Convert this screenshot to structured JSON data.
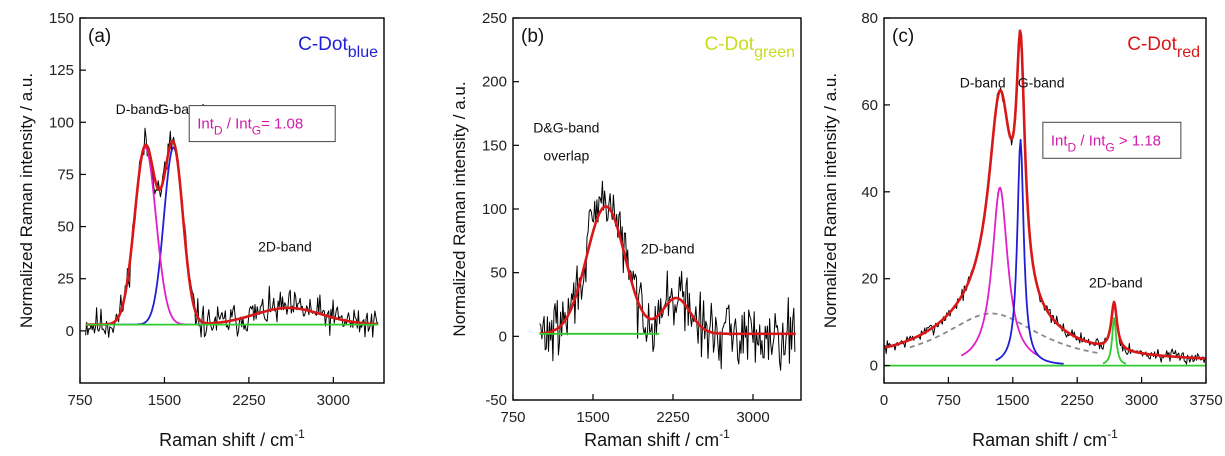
{
  "chart_data": [
    {
      "type": "line",
      "panel_label": "(a)",
      "title_main": "C-Dot",
      "title_sub": "blue",
      "title_color": "#1f1fd6",
      "xlabel_main": "Raman shift / cm",
      "xlabel_sup": "-1",
      "ylabel": "Normalized Raman intensity / a.u.",
      "xlim": [
        750,
        3450
      ],
      "ylim": [
        -25,
        150
      ],
      "xticks": [
        750,
        1500,
        2250,
        3000
      ],
      "yticks": [
        0,
        25,
        50,
        75,
        100,
        125,
        150
      ],
      "ratio_box": {
        "a": "Int",
        "a_sub": "D",
        "sep": " / ",
        "b": "Int",
        "b_sub": "G",
        "tail": "= 1.08",
        "color": "#d21aa8",
        "box_x": 1720,
        "box_y": 108
      },
      "annotations": [
        {
          "text": "D-band",
          "x": 1270,
          "y": 104
        },
        {
          "text": "G-band",
          "x": 1650,
          "y": 104
        },
        {
          "text": "2D-band",
          "x": 2570,
          "y": 38
        }
      ],
      "series": [
        {
          "kind": "noisy",
          "color": "#000000",
          "components": [
            [
              1330,
              85,
              95
            ],
            [
              1580,
              85,
              85
            ],
            [
              2600,
              8,
              300
            ]
          ],
          "baseline": 3,
          "noise": 9,
          "x": [
            800,
            3400
          ],
          "seed": 11
        },
        {
          "kind": "gauss",
          "color": "#1f1fd6",
          "components": [
            [
              1580,
              85,
              85
            ]
          ],
          "baseline": 3,
          "x": [
            1050,
            2000
          ]
        },
        {
          "kind": "gauss",
          "color": "#e020c8",
          "components": [
            [
              1330,
              85,
              95
            ]
          ],
          "baseline": 3,
          "x": [
            1000,
            1900
          ]
        },
        {
          "kind": "gauss",
          "color": "#d81818",
          "components": [
            [
              1330,
              85,
              95
            ],
            [
              1580,
              85,
              85
            ],
            [
              2600,
              8,
              300
            ]
          ],
          "baseline": 3,
          "x": [
            800,
            3400
          ]
        },
        {
          "kind": "flat",
          "color": "#2ecc2e",
          "value": 3,
          "x": [
            800,
            3400
          ]
        }
      ]
    },
    {
      "type": "line",
      "panel_label": "(b)",
      "title_main": "C-Dot",
      "title_sub": "green",
      "title_color": "#c8dc1e",
      "xlabel_main": "Raman shift / cm",
      "xlabel_sup": "-1",
      "ylabel": "Normalized Raman intensity / a.u.",
      "xlim": [
        750,
        3450
      ],
      "ylim": [
        -50,
        250
      ],
      "xticks": [
        750,
        1500,
        2250,
        3000
      ],
      "yticks": [
        -50,
        0,
        50,
        100,
        150,
        200,
        250
      ],
      "annotations": [
        {
          "text": "D&G-band",
          "x": 1250,
          "y": 160
        },
        {
          "text": "overlap",
          "x": 1250,
          "y": 138
        },
        {
          "text": "2D-band",
          "x": 2200,
          "y": 65
        }
      ],
      "series": [
        {
          "kind": "noisy",
          "color": "#000000",
          "components": [
            [
              1620,
              105,
              180
            ],
            [
              2280,
              30,
              130
            ]
          ],
          "baseline": 2,
          "noise": 26,
          "x": [
            1000,
            3400
          ],
          "seed": 29
        },
        {
          "kind": "gauss",
          "color": "#d81818",
          "components": [
            [
              1620,
              100,
              180
            ],
            [
              2280,
              28,
              130
            ]
          ],
          "baseline": 2,
          "x": [
            1000,
            3400
          ]
        },
        {
          "kind": "flat",
          "color": "#2ecc2e",
          "value": 2,
          "x": [
            1000,
            2120
          ]
        }
      ]
    },
    {
      "type": "line",
      "panel_label": "(c)",
      "title_main": "C-Dot",
      "title_sub": "red",
      "title_color": "#d81818",
      "xlabel_main": "Raman shift / cm",
      "xlabel_sup": "-1",
      "ylabel": "Normalized Raman intensity / a.u.",
      "xlim": [
        0,
        3750
      ],
      "ylim": [
        -4,
        80
      ],
      "xticks": [
        0,
        750,
        1500,
        2250,
        3000,
        3750
      ],
      "xtick_labels": [
        "0",
        "750",
        "1500",
        "2250",
        "3000",
        "3750"
      ],
      "yticks": [
        0,
        20,
        40,
        60,
        80
      ],
      "ratio_box": {
        "a": "Int",
        "a_sub": "D",
        "sep": " / ",
        "b": "Int",
        "b_sub": "G",
        "tail": " > 1.18",
        "color": "#d21aa8",
        "box_x": 1850,
        "box_y": 56
      },
      "annotations": [
        {
          "text": "D-band",
          "x": 1150,
          "y": 64
        },
        {
          "text": "G-band",
          "x": 1830,
          "y": 64
        },
        {
          "text": "2D-band",
          "x": 2700,
          "y": 18
        }
      ],
      "series": [
        {
          "kind": "noisy",
          "color": "#000000",
          "components": [
            [
              1350,
              48,
              160
            ],
            [
              1590,
              52,
              60
            ],
            [
              2680,
              11,
              40
            ],
            [
              1250,
              12,
              700
            ]
          ],
          "baseline": 0.5,
          "noise": 1.6,
          "x": [
            0,
            3750
          ],
          "seed": 7,
          "lorentz": true
        },
        {
          "kind": "gauss",
          "color": "#888888",
          "dash": true,
          "components": [
            [
              1250,
              12,
              700
            ]
          ],
          "baseline": 0,
          "x": [
            300,
            2500
          ],
          "lorentz": true
        },
        {
          "kind": "gauss",
          "color": "#e020c8",
          "components": [
            [
              1350,
              41,
              110
            ]
          ],
          "baseline": 0,
          "x": [
            900,
            1800
          ],
          "lorentz": true
        },
        {
          "kind": "gauss",
          "color": "#1f1fd6",
          "components": [
            [
              1590,
              52,
              45
            ]
          ],
          "baseline": 0,
          "x": [
            1300,
            2100
          ],
          "lorentz": true
        },
        {
          "kind": "gauss",
          "color": "#2ecc2e",
          "components": [
            [
              2680,
              11,
              28
            ]
          ],
          "baseline": 0,
          "x": [
            2550,
            2820
          ],
          "lorentz": true
        },
        {
          "kind": "gauss",
          "color": "#d81818",
          "components": [
            [
              1350,
              48,
              160
            ],
            [
              1590,
              52,
              60
            ],
            [
              2680,
              11,
              40
            ],
            [
              1250,
              12,
              700
            ]
          ],
          "baseline": 0.5,
          "x": [
            0,
            3750
          ],
          "lorentz": true
        },
        {
          "kind": "flat",
          "color": "#2ecc2e",
          "value": 0,
          "x": [
            0,
            3750
          ]
        }
      ]
    }
  ]
}
